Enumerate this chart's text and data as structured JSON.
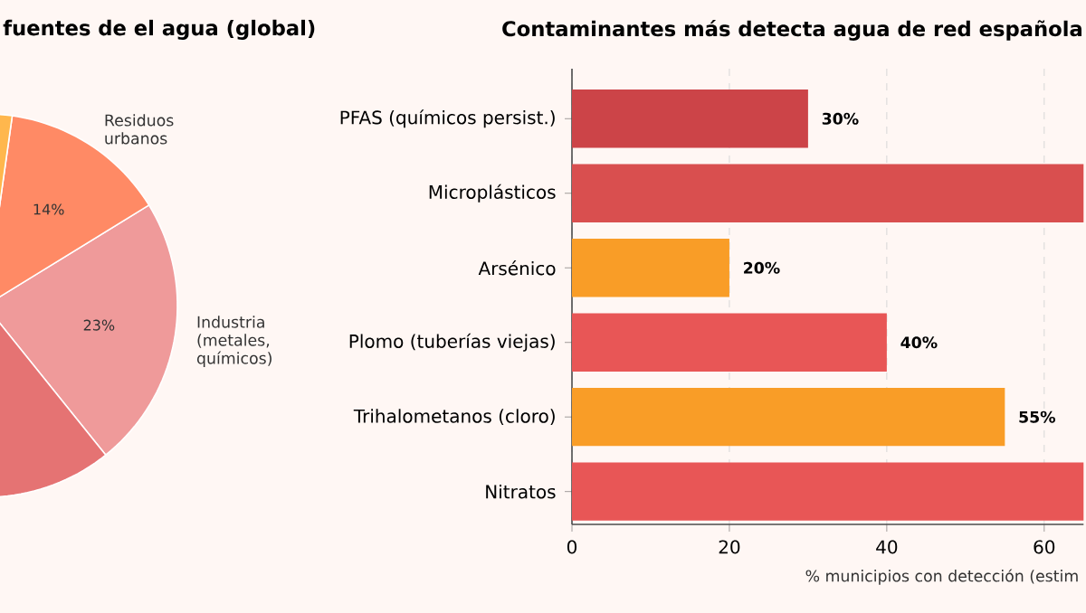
{
  "chart_data": [
    {
      "type": "pie",
      "title": "fuentes de el agua (global)",
      "categories": [
        "Industria (metales, químicos)",
        "Residuos urbanos",
        null,
        null
      ],
      "values": [
        23,
        14,
        30,
        33
      ],
      "colors": [
        "#ef9a9a",
        "#ff8a65",
        "#ffb74d",
        "#e57373"
      ],
      "value_labels": [
        "23%",
        "14%",
        null,
        null
      ]
    },
    {
      "type": "bar",
      "orientation": "horizontal",
      "title": "Contaminantes más detecta agua de red española",
      "xlabel": "% municipios con detección (estim",
      "categories": [
        "PFAS (químicos persist.)",
        "Microplásticos",
        "Arsénico",
        "Plomo (tuberías viejas)",
        "Trihalometanos (cloro)",
        "Nitratos"
      ],
      "values": [
        30,
        65,
        20,
        40,
        55,
        65
      ],
      "colors": [
        "#cc4448",
        "#d94f4f",
        "#f99d27",
        "#e85656",
        "#f99d27",
        "#e85656"
      ],
      "value_labels": [
        "30%",
        null,
        "20%",
        "40%",
        "55%",
        null
      ],
      "xlim": [
        0,
        65
      ],
      "xticks": [
        0,
        20,
        40,
        60
      ],
      "grid": "x"
    }
  ]
}
